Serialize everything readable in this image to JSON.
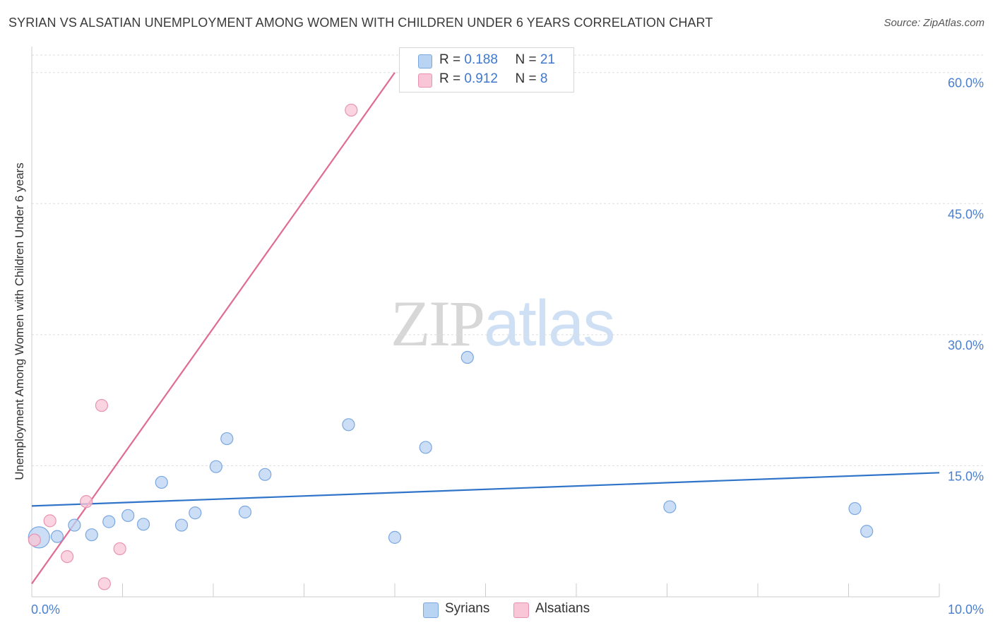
{
  "title": "SYRIAN VS ALSATIAN UNEMPLOYMENT AMONG WOMEN WITH CHILDREN UNDER 6 YEARS CORRELATION CHART",
  "source": "Source: ZipAtlas.com",
  "watermark": {
    "zip": "ZIP",
    "atlas": "atlas"
  },
  "legend": {
    "rows": [
      {
        "r_label": "R = ",
        "r_value": "0.188",
        "n_label": "N = ",
        "n_value": "21"
      },
      {
        "r_label": "R = ",
        "r_value": "0.912",
        "n_label": "N = ",
        "n_value": "8"
      }
    ]
  },
  "colors": {
    "syrians_fill": "#b9d3f3",
    "syrians_stroke": "#7aa7e0",
    "syrians_line": "#2f74c9",
    "alsatians_fill": "#f8c6d6",
    "alsatians_stroke": "#ea93b0",
    "alsatians_line": "#e06b93",
    "grid": "#dddddd",
    "axis_label": "#4a7fd0"
  },
  "chart_data": {
    "type": "scatter",
    "title": "SYRIAN VS ALSATIAN UNEMPLOYMENT AMONG WOMEN WITH CHILDREN UNDER 6 YEARS CORRELATION CHART",
    "xlabel": "",
    "ylabel": "Unemployment Among Women with Children Under 6 years",
    "xlim": [
      0,
      10
    ],
    "ylim": [
      0,
      62
    ],
    "x_tick_labels": [
      "0.0%",
      "10.0%"
    ],
    "y_ticks": [
      15,
      30,
      45,
      60
    ],
    "y_tick_labels": [
      "15.0%",
      "30.0%",
      "45.0%",
      "60.0%"
    ],
    "grid": true,
    "legend_position": "bottom",
    "series": [
      {
        "name": "Syrians",
        "R": 0.188,
        "N": 21,
        "points": [
          {
            "x": 0.08,
            "y": 6.8,
            "size": "large"
          },
          {
            "x": 0.28,
            "y": 6.9
          },
          {
            "x": 0.47,
            "y": 8.2
          },
          {
            "x": 0.66,
            "y": 7.1
          },
          {
            "x": 0.85,
            "y": 8.6
          },
          {
            "x": 1.06,
            "y": 9.3
          },
          {
            "x": 1.23,
            "y": 8.3
          },
          {
            "x": 1.43,
            "y": 13.1
          },
          {
            "x": 1.65,
            "y": 8.2
          },
          {
            "x": 1.8,
            "y": 9.6
          },
          {
            "x": 2.03,
            "y": 14.9
          },
          {
            "x": 2.15,
            "y": 18.1
          },
          {
            "x": 2.35,
            "y": 9.7
          },
          {
            "x": 2.57,
            "y": 14.0
          },
          {
            "x": 3.49,
            "y": 19.7
          },
          {
            "x": 4.0,
            "y": 6.8
          },
          {
            "x": 4.34,
            "y": 17.1
          },
          {
            "x": 4.8,
            "y": 27.4
          },
          {
            "x": 7.03,
            "y": 10.3
          },
          {
            "x": 9.07,
            "y": 10.1
          },
          {
            "x": 9.2,
            "y": 7.5
          }
        ],
        "trend": {
          "x": [
            0,
            10
          ],
          "y": [
            10.4,
            14.2
          ]
        }
      },
      {
        "name": "Alsatians",
        "R": 0.912,
        "N": 8,
        "points": [
          {
            "x": 0.03,
            "y": 6.5
          },
          {
            "x": 0.2,
            "y": 8.7
          },
          {
            "x": 0.39,
            "y": 4.6
          },
          {
            "x": 0.6,
            "y": 10.9
          },
          {
            "x": 0.77,
            "y": 21.9
          },
          {
            "x": 0.8,
            "y": 1.5
          },
          {
            "x": 0.97,
            "y": 5.5
          },
          {
            "x": 3.52,
            "y": 55.7
          }
        ],
        "trend": {
          "x": [
            0,
            4.0
          ],
          "y": [
            1.5,
            60.0
          ]
        }
      }
    ]
  }
}
